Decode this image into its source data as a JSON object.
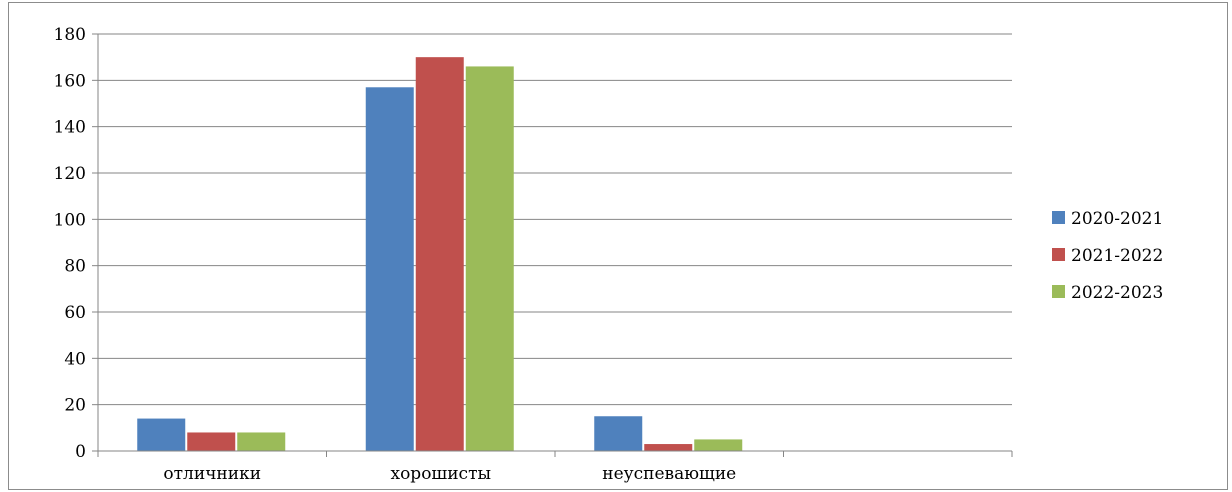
{
  "chart_data": {
    "type": "bar",
    "categories": [
      "отличники",
      "хорошисты",
      "неуспевающие",
      ""
    ],
    "series": [
      {
        "name": "2020-2021",
        "color": "#4f81bd",
        "values": [
          14,
          157,
          15,
          null
        ]
      },
      {
        "name": "2021-2022",
        "color": "#c0504d",
        "values": [
          8,
          170,
          3,
          null
        ]
      },
      {
        "name": "2022-2023",
        "color": "#9bbb59",
        "values": [
          8,
          166,
          5,
          null
        ]
      }
    ],
    "ylim": [
      0,
      180
    ],
    "yticks": [
      0,
      20,
      40,
      60,
      80,
      100,
      120,
      140,
      160,
      180
    ],
    "grid": true,
    "legend_position": "right"
  }
}
